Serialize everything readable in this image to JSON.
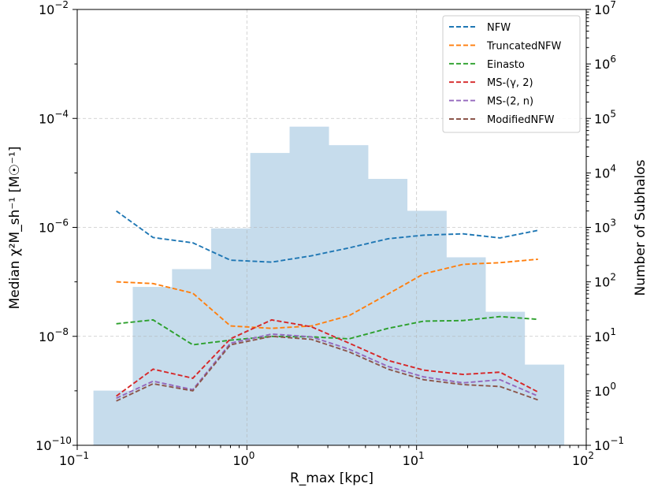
{
  "chart_data": {
    "type": "line",
    "title": "",
    "xlabel": "R_max [kpc]",
    "ylabel": "Median χ²M_sh⁻¹ [M☉⁻¹]",
    "y2label": "Number of Subhalos",
    "xscale": "log",
    "yscale": "log",
    "xlim": [
      0.1,
      100
    ],
    "ylim": [
      1e-10,
      0.01
    ],
    "y2lim": [
      0.1,
      10000000
    ],
    "grid": true,
    "legend_position": "top-right",
    "x_tick_labels": [
      "10",
      "10",
      "10",
      "10"
    ],
    "x_tick_exponents": [
      "−1",
      "0",
      "1",
      "2"
    ],
    "y_tick_labels": [
      "10",
      "10",
      "10",
      "10",
      "10"
    ],
    "y_tick_exponents": [
      "−10",
      "−8",
      "−6",
      "−4",
      "−2"
    ],
    "y2_tick_labels": [
      "10",
      "10",
      "10",
      "10",
      "10",
      "10",
      "10",
      "10",
      "10"
    ],
    "y2_tick_exponents": [
      "−1",
      "0",
      "1",
      "2",
      "3",
      "4",
      "5",
      "6",
      "7"
    ],
    "x": [
      0.17,
      0.28,
      0.48,
      0.8,
      1.4,
      2.4,
      4.0,
      6.8,
      11.0,
      18.8,
      31.0,
      52.0
    ],
    "series": [
      {
        "name": "NFW",
        "color": "#1f77b4",
        "values": [
          2e-06,
          6.5e-07,
          5.2e-07,
          2.5e-07,
          2.3e-07,
          3e-07,
          4.2e-07,
          6.2e-07,
          7.2e-07,
          7.6e-07,
          6.4e-07,
          8.8e-07
        ]
      },
      {
        "name": "TruncatedNFW",
        "color": "#ff7f0e",
        "values": [
          1e-07,
          9.3e-08,
          6.2e-08,
          1.55e-08,
          1.4e-08,
          1.55e-08,
          2.4e-08,
          6e-08,
          1.4e-07,
          2.1e-07,
          2.25e-07,
          2.6e-07
        ]
      },
      {
        "name": "Einasto",
        "color": "#2ca02c",
        "values": [
          1.7e-08,
          2e-08,
          7e-09,
          8.5e-09,
          1e-08,
          9.8e-09,
          9e-09,
          1.4e-08,
          1.9e-08,
          1.95e-08,
          2.3e-08,
          2.05e-08
        ]
      },
      {
        "name": "MS-(γ, 2)",
        "color": "#d62728",
        "values": [
          8e-10,
          2.5e-09,
          1.7e-09,
          9e-09,
          2e-08,
          1.5e-08,
          7.5e-09,
          3.6e-09,
          2.4e-09,
          2e-09,
          2.2e-09,
          9.5e-10
        ]
      },
      {
        "name": "MS-(2, n)",
        "color": "#9467bd",
        "values": [
          7.3e-10,
          1.5e-09,
          1.05e-09,
          7.5e-09,
          1.1e-08,
          9.8e-09,
          5.8e-09,
          2.8e-09,
          1.8e-09,
          1.4e-09,
          1.6e-09,
          8e-10
        ]
      },
      {
        "name": "ModifiedNFW",
        "color": "#8c564b",
        "values": [
          6.5e-10,
          1.35e-09,
          1e-09,
          7e-09,
          1e-08,
          8.8e-09,
          5.2e-09,
          2.5e-09,
          1.6e-09,
          1.3e-09,
          1.2e-09,
          6.8e-10
        ]
      }
    ],
    "histogram": {
      "name": "Number of Subhalos",
      "color": "#c6dcec",
      "bin_edges": [
        0.125,
        0.213,
        0.363,
        0.617,
        1.05,
        1.79,
        3.04,
        5.18,
        8.81,
        15.0,
        25.5,
        43.4,
        74.0
      ],
      "counts": [
        1,
        80,
        170,
        950,
        23000,
        70000,
        32000,
        7700,
        2000,
        280,
        28,
        3
      ]
    }
  }
}
